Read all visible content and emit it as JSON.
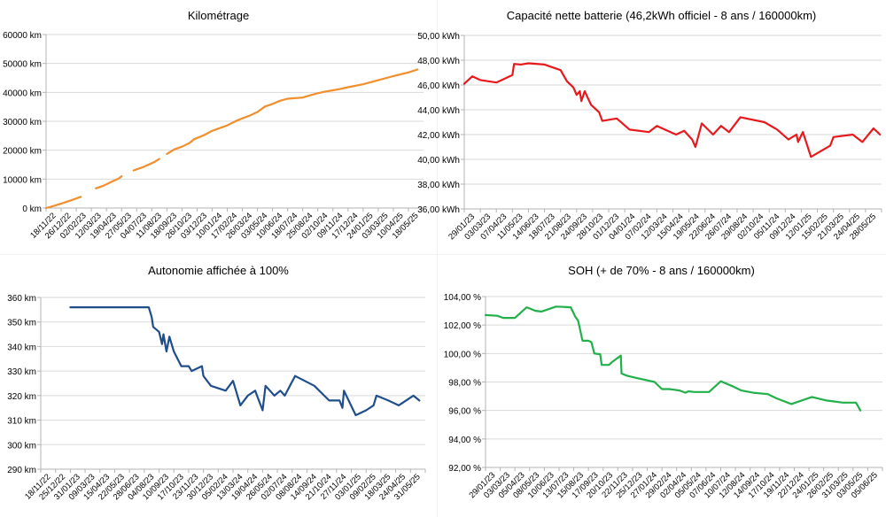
{
  "chart_data": [
    {
      "type": "line",
      "title": "Kilométrage",
      "color": "#f28e2b",
      "ylim": [
        0,
        60000
      ],
      "y_ticks": [
        0,
        10000,
        20000,
        30000,
        40000,
        50000,
        60000
      ],
      "y_tick_labels": [
        "0 km",
        "10000 km",
        "20000 km",
        "30000 km",
        "40000 km",
        "50000 km",
        "60000 km"
      ],
      "x_tick_labels": [
        "18/11/22",
        "26/12/22",
        "02/02/23",
        "12/03/23",
        "19/04/23",
        "27/05/23",
        "04/07/23",
        "11/08/23",
        "18/09/23",
        "26/10/23",
        "03/12/23",
        "10/01/24",
        "17/02/24",
        "26/03/24",
        "03/05/24",
        "10/06/24",
        "18/07/24",
        "25/08/24",
        "02/10/24",
        "09/11/24",
        "17/12/24",
        "24/01/25",
        "03/03/25",
        "10/04/25",
        "18/05/25"
      ],
      "grid": "horizontal",
      "series": [
        {
          "segments": [
            [
              [
                0.0,
                0
              ],
              [
                0.5,
                700
              ],
              [
                1,
                1500
              ],
              [
                1.5,
                2400
              ],
              [
                2,
                3300
              ],
              [
                2.3,
                3900
              ]
            ],
            [
              [
                3.3,
                6800
              ],
              [
                3.8,
                7700
              ],
              [
                4.3,
                9000
              ],
              [
                4.8,
                10200
              ],
              [
                5.0,
                11000
              ]
            ],
            [
              [
                5.8,
                13000
              ],
              [
                6.5,
                14300
              ],
              [
                7.2,
                16000
              ],
              [
                7.5,
                17000
              ]
            ],
            [
              [
                8.0,
                18700
              ],
              [
                8.5,
                20300
              ],
              [
                9.0,
                21200
              ],
              [
                9.5,
                22500
              ],
              [
                9.8,
                23800
              ],
              [
                10.5,
                25300
              ],
              [
                11.0,
                26700
              ],
              [
                12.0,
                28600
              ],
              [
                12.5,
                29900
              ],
              [
                13.0,
                31000
              ],
              [
                13.5,
                32000
              ],
              [
                14.0,
                33200
              ],
              [
                14.5,
                35100
              ],
              [
                15.0,
                36000
              ],
              [
                15.5,
                37100
              ],
              [
                16.0,
                37800
              ],
              [
                17.0,
                38200
              ],
              [
                17.5,
                39000
              ],
              [
                18.0,
                39700
              ],
              [
                18.5,
                40300
              ],
              [
                19.0,
                40700
              ],
              [
                19.5,
                41200
              ],
              [
                20.0,
                41800
              ],
              [
                21.0,
                42800
              ],
              [
                22.0,
                44200
              ],
              [
                23.0,
                45600
              ],
              [
                24.0,
                46900
              ],
              [
                24.6,
                47900
              ]
            ]
          ]
        }
      ]
    },
    {
      "type": "line",
      "title": "Capacité nette batterie (46,2kWh officiel - 8 ans / 160000km)",
      "color": "#e8191d",
      "ylim": [
        36,
        50
      ],
      "y_ticks": [
        36,
        38,
        40,
        42,
        44,
        46,
        48,
        50
      ],
      "y_tick_labels": [
        "36,00 kWh",
        "38,00 kWh",
        "40,00 kWh",
        "42,00 kWh",
        "44,00 kWh",
        "46,00 kWh",
        "48,00 kWh",
        "50,00 kWh"
      ],
      "x_tick_labels": [
        "29/01/23",
        "03/03/23",
        "07/04/23",
        "11/05/23",
        "14/06/23",
        "18/07/23",
        "21/08/23",
        "24/09/23",
        "28/10/23",
        "01/12/23",
        "04/01/24",
        "07/02/24",
        "12/03/24",
        "15/04/24",
        "19/05/24",
        "22/06/24",
        "26/07/24",
        "29/08/24",
        "02/10/24",
        "05/11/24",
        "09/12/24",
        "12/01/25",
        "15/02/25",
        "21/03/25",
        "24/04/25",
        "28/05/25"
      ],
      "grid": "horizontal",
      "series": [
        {
          "segments": [
            [
              [
                0.0,
                46.1
              ],
              [
                0.5,
                46.7
              ],
              [
                1,
                46.4
              ],
              [
                2,
                46.2
              ],
              [
                2.5,
                46.5
              ],
              [
                3.0,
                46.8
              ],
              [
                3.1,
                47.7
              ],
              [
                3.5,
                47.65
              ],
              [
                4.0,
                47.75
              ],
              [
                5.0,
                47.65
              ],
              [
                6.0,
                47.2
              ],
              [
                6.4,
                46.3
              ],
              [
                6.8,
                45.8
              ],
              [
                7.0,
                45.2
              ],
              [
                7.2,
                45.5
              ],
              [
                7.3,
                44.7
              ],
              [
                7.5,
                45.5
              ],
              [
                7.9,
                44.4
              ],
              [
                8.4,
                43.8
              ],
              [
                8.6,
                43.1
              ],
              [
                9.5,
                43.3
              ],
              [
                10.3,
                42.4
              ],
              [
                11.5,
                42.2
              ],
              [
                12.0,
                42.7
              ],
              [
                12.5,
                42.4
              ],
              [
                13.2,
                42.0
              ],
              [
                13.7,
                42.3
              ],
              [
                14.2,
                41.6
              ],
              [
                14.4,
                41.0
              ],
              [
                14.8,
                42.9
              ],
              [
                15.5,
                42.0
              ],
              [
                16.0,
                42.7
              ],
              [
                16.5,
                42.2
              ],
              [
                17.2,
                43.4
              ],
              [
                18.7,
                43.0
              ],
              [
                19.5,
                42.4
              ],
              [
                20.2,
                41.6
              ],
              [
                20.7,
                42.0
              ],
              [
                20.8,
                41.4
              ],
              [
                21.1,
                42.2
              ],
              [
                21.6,
                40.2
              ],
              [
                22.8,
                41.1
              ],
              [
                23.0,
                41.8
              ],
              [
                24.2,
                42.0
              ],
              [
                24.8,
                41.4
              ],
              [
                25.5,
                42.5
              ],
              [
                25.9,
                42.0
              ]
            ]
          ]
        }
      ]
    },
    {
      "type": "line",
      "title": "Autonomie affichée à 100%",
      "color": "#1f4e8c",
      "ylim": [
        290,
        360
      ],
      "y_ticks": [
        290,
        300,
        310,
        320,
        330,
        340,
        350,
        360
      ],
      "y_tick_labels": [
        "290 km",
        "300 km",
        "310 km",
        "320 km",
        "330 km",
        "340 km",
        "350 km",
        "360 km"
      ],
      "x_tick_labels": [
        "18/11/22",
        "25/12/22",
        "31/01/23",
        "09/03/23",
        "15/04/23",
        "22/05/23",
        "28/06/23",
        "04/08/23",
        "10/09/23",
        "17/10/23",
        "23/11/23",
        "30/12/23",
        "05/02/24",
        "13/03/24",
        "19/04/24",
        "26/05/24",
        "02/07/24",
        "08/08/24",
        "14/09/24",
        "21/10/24",
        "27/11/24",
        "03/01/25",
        "09/02/25",
        "18/03/25",
        "24/04/25",
        "31/05/25"
      ],
      "grid": "horizontal",
      "series": [
        {
          "segments": [
            [
              [
                2.0,
                356
              ],
              [
                7.0,
                356
              ],
              [
                7.3,
                356
              ],
              [
                7.5,
                352
              ],
              [
                7.6,
                348
              ],
              [
                8.0,
                346
              ],
              [
                8.2,
                341
              ],
              [
                8.3,
                345
              ],
              [
                8.5,
                338
              ],
              [
                8.7,
                344
              ],
              [
                9.0,
                338
              ],
              [
                9.5,
                332
              ],
              [
                10.0,
                332
              ],
              [
                10.2,
                330
              ],
              [
                10.9,
                332
              ],
              [
                11.0,
                328
              ],
              [
                11.5,
                324
              ],
              [
                12.5,
                322
              ],
              [
                13.0,
                326
              ],
              [
                13.5,
                316
              ],
              [
                14.0,
                320
              ],
              [
                14.5,
                322
              ],
              [
                15.0,
                314
              ],
              [
                15.2,
                324
              ],
              [
                15.8,
                320
              ],
              [
                16.2,
                322
              ],
              [
                16.5,
                320
              ],
              [
                17.2,
                328
              ],
              [
                18.5,
                324
              ],
              [
                19.5,
                318
              ],
              [
                20.2,
                318
              ],
              [
                20.4,
                315
              ],
              [
                20.5,
                322
              ],
              [
                21.3,
                312
              ],
              [
                22.0,
                314
              ],
              [
                22.5,
                316
              ],
              [
                22.7,
                320
              ],
              [
                23.5,
                318
              ],
              [
                24.2,
                316
              ],
              [
                24.7,
                318
              ],
              [
                25.2,
                320
              ],
              [
                25.6,
                318
              ]
            ]
          ]
        }
      ]
    },
    {
      "type": "line",
      "title": "SOH (+ de 70% - 8 ans / 160000km)",
      "color": "#22b04b",
      "ylim": [
        92,
        104
      ],
      "y_ticks": [
        92,
        94,
        96,
        98,
        100,
        102,
        104
      ],
      "y_tick_labels": [
        "92,00 %",
        "94,00 %",
        "96,00 %",
        "98,00 %",
        "100,00 %",
        "102,00 %",
        "104,00 %"
      ],
      "x_tick_labels": [
        "29/01/23",
        "03/03/23",
        "05/04/23",
        "08/05/23",
        "10/06/23",
        "13/07/23",
        "15/08/23",
        "17/09/23",
        "20/10/23",
        "22/11/23",
        "25/12/23",
        "27/01/24",
        "29/02/24",
        "02/04/24",
        "05/05/24",
        "07/06/24",
        "10/07/24",
        "12/08/24",
        "14/09/24",
        "17/10/24",
        "19/11/24",
        "22/12/24",
        "24/01/25",
        "26/02/25",
        "31/03/25",
        "03/05/25",
        "05/06/25"
      ],
      "grid": "horizontal",
      "series": [
        {
          "segments": [
            [
              [
                0.0,
                102.7
              ],
              [
                0.8,
                102.65
              ],
              [
                1.2,
                102.5
              ],
              [
                2.0,
                102.5
              ],
              [
                2.8,
                103.25
              ],
              [
                3.4,
                103.0
              ],
              [
                3.8,
                102.95
              ],
              [
                4.8,
                103.3
              ],
              [
                5.8,
                103.25
              ],
              [
                6.1,
                102.6
              ],
              [
                6.3,
                102.3
              ],
              [
                6.6,
                100.9
              ],
              [
                7.0,
                100.9
              ],
              [
                7.2,
                100.8
              ],
              [
                7.4,
                100.0
              ],
              [
                7.8,
                99.95
              ],
              [
                7.9,
                99.2
              ],
              [
                8.4,
                99.2
              ],
              [
                8.6,
                99.4
              ],
              [
                9.2,
                99.85
              ],
              [
                9.25,
                98.6
              ],
              [
                9.6,
                98.45
              ],
              [
                10.2,
                98.3
              ],
              [
                11.5,
                98.0
              ],
              [
                12.0,
                97.5
              ],
              [
                12.5,
                97.5
              ],
              [
                13.2,
                97.4
              ],
              [
                13.6,
                97.25
              ],
              [
                13.8,
                97.35
              ],
              [
                14.2,
                97.3
              ],
              [
                15.2,
                97.3
              ],
              [
                16.0,
                98.05
              ],
              [
                16.8,
                97.7
              ],
              [
                17.4,
                97.4
              ],
              [
                18.2,
                97.25
              ],
              [
                19.2,
                97.15
              ],
              [
                19.8,
                96.85
              ],
              [
                20.8,
                96.45
              ],
              [
                22.2,
                96.95
              ],
              [
                23.2,
                96.7
              ],
              [
                24.3,
                96.55
              ],
              [
                25.2,
                96.55
              ],
              [
                25.5,
                96.0
              ]
            ]
          ]
        }
      ]
    }
  ]
}
